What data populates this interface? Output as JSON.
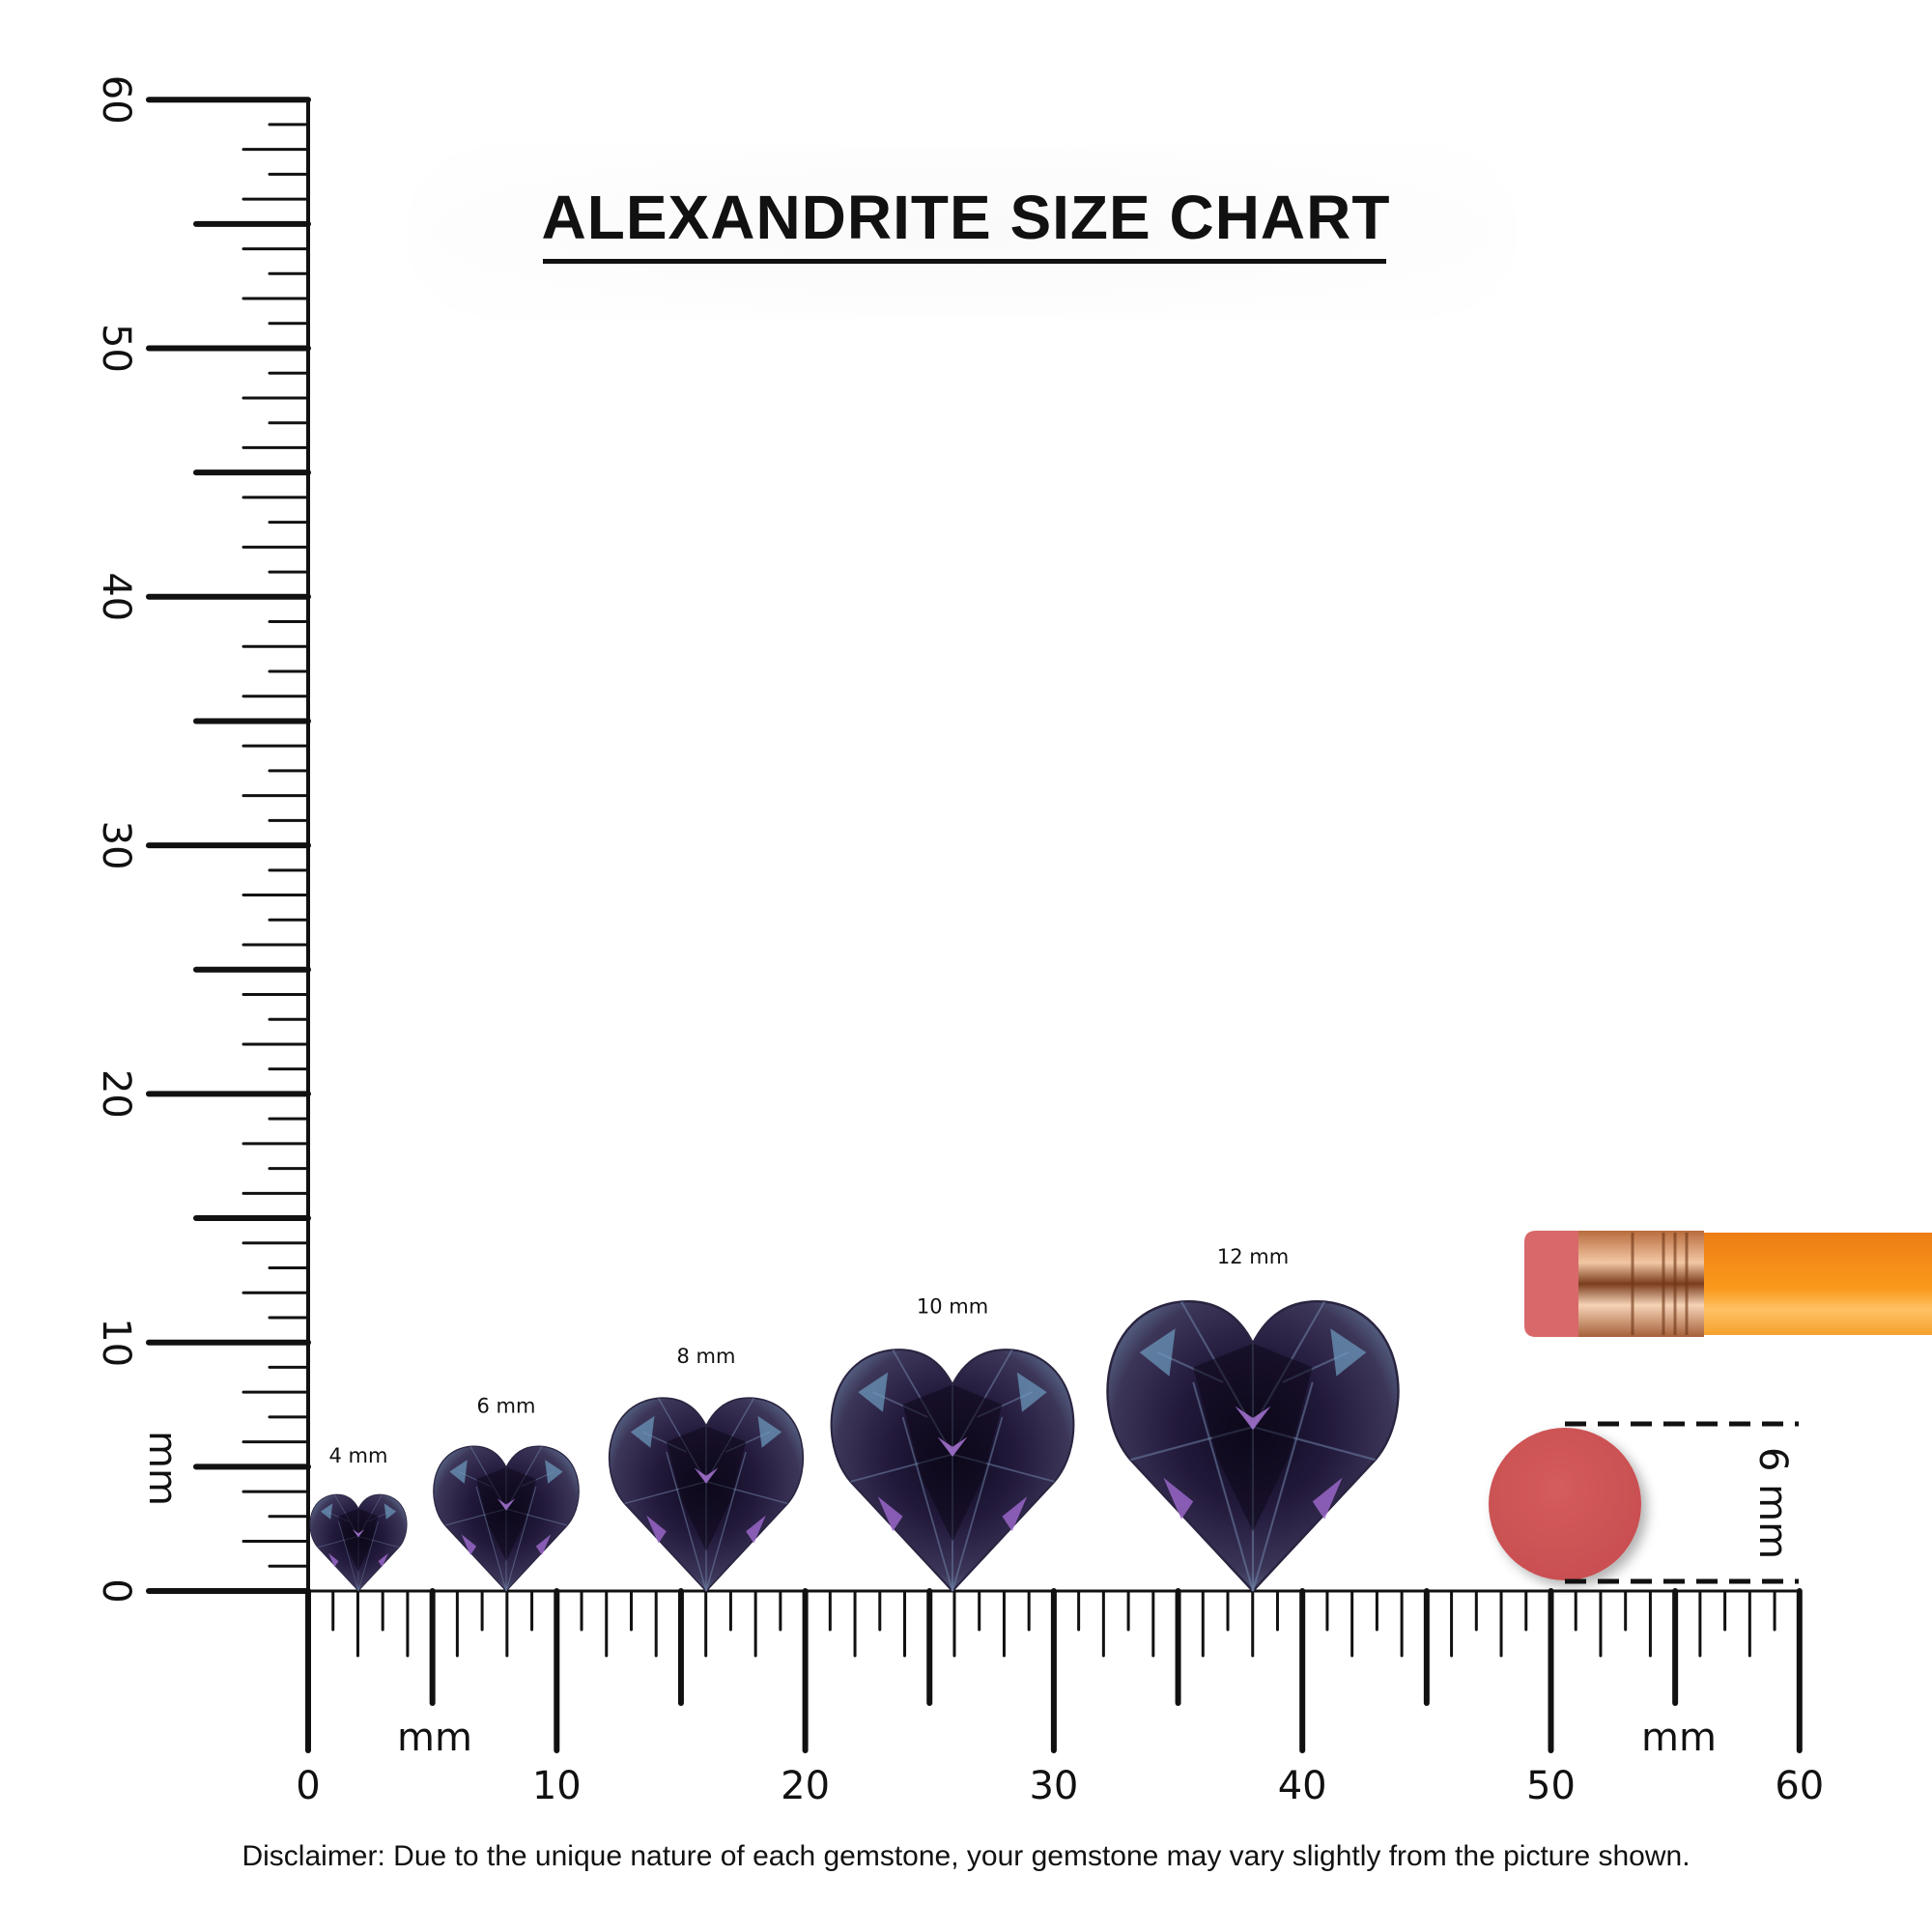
{
  "title": "ALEXANDRITE SIZE CHART",
  "disclaimer": "Disclaimer: Due to the unique nature of each gemstone, your gemstone may vary slightly from the picture shown.",
  "ruler": {
    "unit_label": "mm",
    "min": 0,
    "max": 60,
    "major_labels": [
      "0",
      "10",
      "20",
      "30",
      "40",
      "50",
      "60"
    ]
  },
  "gems": [
    {
      "size_mm": 4,
      "label": "4 mm"
    },
    {
      "size_mm": 6,
      "label": "6 mm"
    },
    {
      "size_mm": 8,
      "label": "8 mm"
    },
    {
      "size_mm": 10,
      "label": "10 mm"
    },
    {
      "size_mm": 12,
      "label": "12 mm"
    }
  ],
  "eraser_reference": {
    "size_mm": 6,
    "label": "6 mm"
  },
  "colors": {
    "ruler": "#111111",
    "gem_dark": "#1a1330",
    "gem_mid": "#3b3456",
    "gem_teal": "#5b86a6",
    "gem_purple": "#8a5bc0",
    "eraser": "#d15a5a",
    "pencil": "#f7921e",
    "ferrule": "#e0a57a"
  }
}
